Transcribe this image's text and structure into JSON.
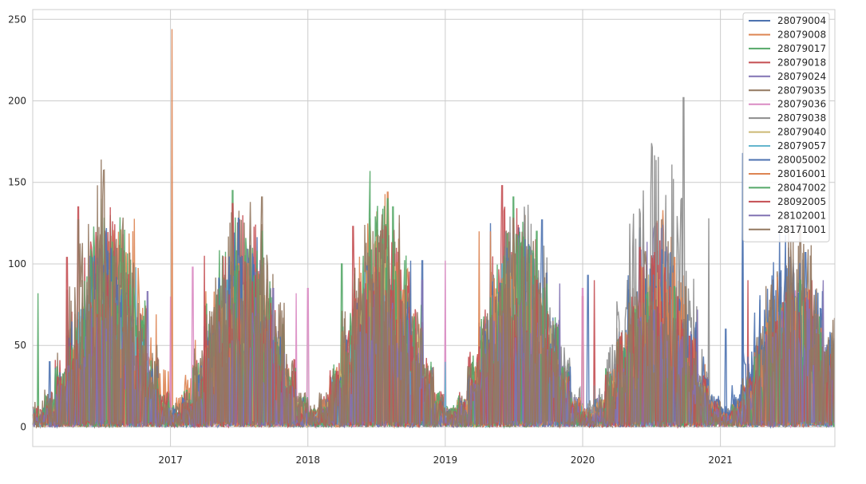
{
  "chart_data": {
    "type": "line",
    "title": "",
    "xlabel": "",
    "ylabel": "",
    "xlim": [
      "2016-01-01",
      "2021-11-01"
    ],
    "ylim": [
      -12,
      256
    ],
    "grid": true,
    "legend_position": "top-right",
    "x_ticks": [
      {
        "date": "2017-01-01",
        "label": "2017"
      },
      {
        "date": "2018-01-01",
        "label": "2018"
      },
      {
        "date": "2019-01-01",
        "label": "2019"
      },
      {
        "date": "2020-01-01",
        "label": "2020"
      },
      {
        "date": "2021-01-01",
        "label": "2021"
      }
    ],
    "y_ticks": [
      0,
      50,
      100,
      150,
      200,
      250
    ],
    "series": [
      {
        "name": "28079004",
        "color": "#4c72b0",
        "points": [
          [
            "2016-02-15",
            40
          ],
          [
            "2016-07-01",
            95
          ],
          [
            "2017-06-01",
            90
          ],
          [
            "2018-06-15",
            100
          ],
          [
            "2018-11-01",
            102
          ],
          [
            "2019-05-01",
            125
          ],
          [
            "2019-07-15",
            122
          ],
          [
            "2020-01-15",
            93
          ],
          [
            "2020-06-01",
            122
          ],
          [
            "2021-01-15",
            60
          ],
          [
            "2021-03-01",
            168
          ],
          [
            "2021-07-01",
            110
          ]
        ]
      },
      {
        "name": "28079008",
        "color": "#dd8452",
        "points": [
          [
            "2016-06-01",
            90
          ],
          [
            "2017-01-05",
            244
          ],
          [
            "2017-07-01",
            100
          ],
          [
            "2018-08-01",
            144
          ],
          [
            "2019-04-01",
            120
          ],
          [
            "2020-01-01",
            80
          ],
          [
            "2020-08-01",
            133
          ],
          [
            "2021-06-01",
            95
          ]
        ]
      },
      {
        "name": "28079017",
        "color": "#55a868",
        "points": [
          [
            "2016-01-15",
            82
          ],
          [
            "2016-07-01",
            140
          ],
          [
            "2017-06-15",
            145
          ],
          [
            "2018-04-01",
            100
          ],
          [
            "2018-06-15",
            157
          ],
          [
            "2018-08-15",
            135
          ],
          [
            "2019-07-01",
            141
          ],
          [
            "2020-07-01",
            100
          ],
          [
            "2021-07-01",
            80
          ]
        ]
      },
      {
        "name": "28079018",
        "color": "#c44e52",
        "points": [
          [
            "2016-05-01",
            135
          ],
          [
            "2017-06-15",
            137
          ],
          [
            "2018-05-01",
            123
          ],
          [
            "2019-06-01",
            148
          ],
          [
            "2020-02-01",
            90
          ],
          [
            "2020-07-15",
            125
          ],
          [
            "2021-03-15",
            90
          ],
          [
            "2021-08-01",
            90
          ]
        ]
      },
      {
        "name": "28079024",
        "color": "#8172b3",
        "points": [
          [
            "2016-06-01",
            105
          ],
          [
            "2017-07-01",
            112
          ],
          [
            "2018-07-01",
            110
          ],
          [
            "2019-07-01",
            118
          ],
          [
            "2020-08-01",
            124
          ],
          [
            "2021-07-01",
            90
          ]
        ]
      },
      {
        "name": "28079035",
        "color": "#937860",
        "points": [
          [
            "2016-07-01",
            164
          ],
          [
            "2017-09-01",
            141
          ],
          [
            "2018-09-01",
            130
          ],
          [
            "2019-08-01",
            130
          ],
          [
            "2020-08-15",
            114
          ],
          [
            "2021-08-01",
            125
          ]
        ]
      },
      {
        "name": "28079036",
        "color": "#da8bc3",
        "points": [
          [
            "2017-01-01",
            80
          ],
          [
            "2017-03-01",
            98
          ],
          [
            "2017-12-01",
            82
          ],
          [
            "2018-01-01",
            85
          ],
          [
            "2019-01-01",
            102
          ],
          [
            "2020-01-01",
            85
          ]
        ]
      },
      {
        "name": "28079038",
        "color": "#8c8c8c",
        "points": [
          [
            "2016-08-01",
            90
          ],
          [
            "2018-07-01",
            90
          ],
          [
            "2020-09-25",
            202
          ],
          [
            "2020-12-01",
            128
          ],
          [
            "2021-06-01",
            90
          ]
        ]
      },
      {
        "name": "28079040",
        "color": "#ccb974",
        "points": [
          [
            "2016-07-01",
            100
          ],
          [
            "2017-07-01",
            105
          ],
          [
            "2018-08-01",
            110
          ],
          [
            "2019-07-01",
            115
          ],
          [
            "2020-08-01",
            100
          ],
          [
            "2021-07-01",
            85
          ]
        ]
      },
      {
        "name": "28079057",
        "color": "#64b5cd",
        "points": [
          [
            "2016-10-01",
            98
          ],
          [
            "2017-06-01",
            90
          ],
          [
            "2018-06-01",
            95
          ],
          [
            "2019-01-01",
            40
          ],
          [
            "2019-06-01",
            100
          ],
          [
            "2020-06-01",
            90
          ],
          [
            "2021-06-01",
            80
          ]
        ]
      },
      {
        "name": "28005002",
        "color": "#4c72b0",
        "points": [
          [
            "2016-07-15",
            122
          ],
          [
            "2017-07-01",
            128
          ],
          [
            "2018-10-01",
            102
          ],
          [
            "2019-09-15",
            127
          ],
          [
            "2020-05-01",
            93
          ],
          [
            "2021-03-01",
            168
          ],
          [
            "2021-08-15",
            107
          ]
        ]
      },
      {
        "name": "28016001",
        "color": "#dd8452",
        "points": [
          [
            "2016-09-01",
            91
          ],
          [
            "2017-07-01",
            100
          ],
          [
            "2018-09-01",
            112
          ],
          [
            "2019-05-01",
            120
          ],
          [
            "2020-09-01",
            104
          ],
          [
            "2021-06-01",
            92
          ]
        ]
      },
      {
        "name": "28047002",
        "color": "#55a868",
        "points": [
          [
            "2016-09-01",
            121
          ],
          [
            "2017-09-01",
            120
          ],
          [
            "2018-08-01",
            140
          ],
          [
            "2019-09-01",
            120
          ],
          [
            "2020-09-01",
            86
          ],
          [
            "2021-08-01",
            90
          ]
        ]
      },
      {
        "name": "28092005",
        "color": "#c44e52",
        "points": [
          [
            "2016-04-01",
            104
          ],
          [
            "2017-04-01",
            105
          ],
          [
            "2018-07-01",
            110
          ],
          [
            "2019-09-01",
            90
          ],
          [
            "2020-06-01",
            110
          ],
          [
            "2021-09-01",
            90
          ]
        ]
      },
      {
        "name": "28102001",
        "color": "#8172b3",
        "points": [
          [
            "2016-11-01",
            83
          ],
          [
            "2017-10-01",
            85
          ],
          [
            "2018-11-01",
            90
          ],
          [
            "2019-11-01",
            88
          ],
          [
            "2020-11-01",
            72
          ],
          [
            "2021-10-01",
            90
          ]
        ]
      },
      {
        "name": "28171001",
        "color": "#937860",
        "points": [
          [
            "2016-05-01",
            127
          ],
          [
            "2017-08-01",
            138
          ],
          [
            "2018-09-01",
            125
          ],
          [
            "2019-07-01",
            128
          ],
          [
            "2020-10-01",
            86
          ],
          [
            "2021-07-01",
            122
          ]
        ]
      }
    ]
  }
}
